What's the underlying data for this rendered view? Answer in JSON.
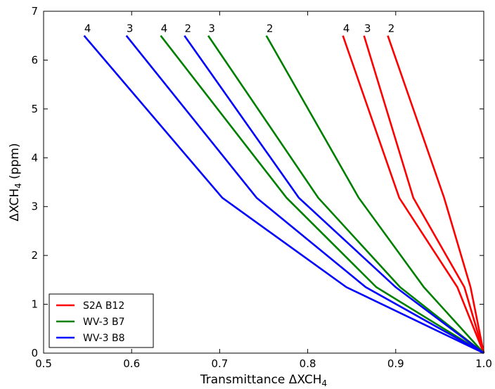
{
  "chart_data": {
    "type": "line",
    "xlabel": "Transmittance ΔXCH",
    "xlabel_sub": "4",
    "ylabel": "ΔXCH",
    "ylabel_sub": "4",
    "ylabel_suffix": " (ppm)",
    "xlim": [
      0.5,
      1.0
    ],
    "ylim": [
      0,
      7
    ],
    "xticks": [
      0.5,
      0.6,
      0.7,
      0.8,
      0.9,
      1.0
    ],
    "xtick_labels": [
      "0.5",
      "0.6",
      "0.7",
      "0.8",
      "0.9",
      "1.0"
    ],
    "yticks": [
      0,
      1,
      2,
      3,
      4,
      5,
      6,
      7
    ],
    "ytick_labels": [
      "0",
      "1",
      "2",
      "3",
      "4",
      "5",
      "6",
      "7"
    ],
    "grid": false,
    "legend_position": "lower-left",
    "legend": [
      {
        "name": "S2A B12",
        "color": "#ff0000"
      },
      {
        "name": "WV-3 B7",
        "color": "#008000"
      },
      {
        "name": "WV-3 B8",
        "color": "#0000ff"
      }
    ],
    "series": [
      {
        "group": "S2A B12",
        "label": "2",
        "color": "#ff0000",
        "points": [
          [
            1.0,
            0.0
          ],
          [
            0.985,
            1.35
          ],
          [
            0.955,
            3.18
          ],
          [
            0.891,
            6.5
          ]
        ]
      },
      {
        "group": "S2A B12",
        "label": "3",
        "color": "#ff0000",
        "points": [
          [
            1.0,
            0.0
          ],
          [
            0.978,
            1.35
          ],
          [
            0.92,
            3.18
          ],
          [
            0.864,
            6.5
          ]
        ]
      },
      {
        "group": "S2A B12",
        "label": "4",
        "color": "#ff0000",
        "points": [
          [
            1.0,
            0.0
          ],
          [
            0.97,
            1.35
          ],
          [
            0.904,
            3.18
          ],
          [
            0.84,
            6.5
          ]
        ]
      },
      {
        "group": "WV-3 B7",
        "label": "2",
        "color": "#008000",
        "points": [
          [
            1.0,
            0.0
          ],
          [
            0.932,
            1.35
          ],
          [
            0.858,
            3.18
          ],
          [
            0.753,
            6.5
          ]
        ]
      },
      {
        "group": "WV-3 B7",
        "label": "3",
        "color": "#008000",
        "points": [
          [
            1.0,
            0.0
          ],
          [
            0.905,
            1.35
          ],
          [
            0.812,
            3.18
          ],
          [
            0.687,
            6.5
          ]
        ]
      },
      {
        "group": "WV-3 B7",
        "label": "4",
        "color": "#008000",
        "points": [
          [
            1.0,
            0.0
          ],
          [
            0.878,
            1.35
          ],
          [
            0.776,
            3.18
          ],
          [
            0.633,
            6.5
          ]
        ]
      },
      {
        "group": "WV-3 B8",
        "label": "2",
        "color": "#0000ff",
        "points": [
          [
            1.0,
            0.0
          ],
          [
            0.9,
            1.35
          ],
          [
            0.79,
            3.18
          ],
          [
            0.66,
            6.5
          ]
        ]
      },
      {
        "group": "WV-3 B8",
        "label": "3",
        "color": "#0000ff",
        "points": [
          [
            1.0,
            0.0
          ],
          [
            0.866,
            1.35
          ],
          [
            0.742,
            3.18
          ],
          [
            0.594,
            6.5
          ]
        ]
      },
      {
        "group": "WV-3 B8",
        "label": "4",
        "color": "#0000ff",
        "points": [
          [
            1.0,
            0.0
          ],
          [
            0.844,
            1.35
          ],
          [
            0.703,
            3.18
          ],
          [
            0.546,
            6.5
          ]
        ]
      }
    ]
  }
}
